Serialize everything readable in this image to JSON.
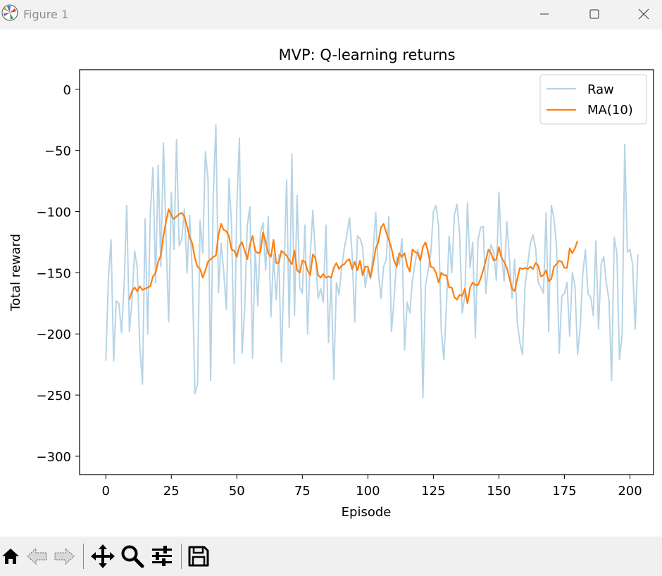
{
  "window": {
    "title": "Figure 1",
    "icons": [
      "matplotlib-logo-icon",
      "minimize-icon",
      "maximize-icon",
      "close-icon"
    ]
  },
  "toolbar": {
    "buttons": [
      "home-icon",
      "back-arrow-icon",
      "forward-arrow-icon",
      "pan-move-icon",
      "zoom-magnifier-icon",
      "configure-subplots-icon",
      "save-floppy-icon"
    ]
  },
  "colors": {
    "raw": "#b7d4e6",
    "ma": "#ff7f0e",
    "axis": "#000000"
  },
  "chart_data": {
    "type": "line",
    "title": "MVP: Q-learning returns",
    "xlabel": "Episode",
    "ylabel": "Total reward",
    "xlim": [
      -10,
      209
    ],
    "ylim": [
      -315,
      16
    ],
    "xticks": [
      0,
      25,
      50,
      75,
      100,
      125,
      150,
      175,
      200
    ],
    "yticks": [
      0,
      -50,
      -100,
      -150,
      -200,
      -250,
      -300
    ],
    "xtick_labels": [
      "0",
      "25",
      "50",
      "75",
      "100",
      "125",
      "150",
      "175",
      "200"
    ],
    "ytick_labels": [
      "0",
      "−50",
      "−100",
      "−150",
      "−200",
      "−250",
      "−300"
    ],
    "grid": false,
    "legend_position": "upper right",
    "series": [
      {
        "name": "Raw",
        "x_start": 0,
        "values": [
          -222,
          -155,
          -123,
          -222,
          -173,
          -175,
          -199,
          -160,
          -95,
          -198,
          -173,
          -132,
          -146,
          -211,
          -241,
          -106,
          -200,
          -101,
          -64,
          -158,
          -62,
          -145,
          -44,
          -122,
          -190,
          -84,
          -131,
          -41,
          -128,
          -122,
          -98,
          -150,
          -103,
          -149,
          -249,
          -241,
          -107,
          -134,
          -51,
          -73,
          -238,
          -88,
          -29,
          -166,
          -126,
          -149,
          -180,
          -73,
          -112,
          -224,
          -94,
          -40,
          -216,
          -180,
          -111,
          -96,
          -220,
          -129,
          -177,
          -118,
          -109,
          -148,
          -104,
          -186,
          -135,
          -172,
          -135,
          -223,
          -148,
          -74,
          -195,
          -53,
          -185,
          -87,
          -162,
          -167,
          -111,
          -200,
          -136,
          -99,
          -136,
          -171,
          -163,
          -174,
          -111,
          -207,
          -153,
          -237,
          -158,
          -168,
          -146,
          -130,
          -119,
          -105,
          -135,
          -190,
          -120,
          -122,
          -129,
          -162,
          -147,
          -155,
          -133,
          -101,
          -149,
          -171,
          -145,
          -139,
          -104,
          -198,
          -172,
          -137,
          -143,
          -122,
          -213,
          -174,
          -183,
          -156,
          -142,
          -131,
          -138,
          -252,
          -160,
          -148,
          -134,
          -100,
          -95,
          -112,
          -197,
          -221,
          -176,
          -120,
          -150,
          -103,
          -94,
          -118,
          -183,
          -169,
          -93,
          -146,
          -125,
          -203,
          -124,
          -113,
          -112,
          -167,
          -141,
          -127,
          -133,
          -156,
          -84,
          -134,
          -157,
          -108,
          -138,
          -171,
          -139,
          -190,
          -207,
          -217,
          -160,
          -143,
          -126,
          -119,
          -130,
          -158,
          -162,
          -167,
          -101,
          -198,
          -95,
          -105,
          -129,
          -216,
          -169,
          -167,
          -158,
          -202,
          -150,
          -160,
          -217,
          -195,
          -151,
          -131,
          -167,
          -170,
          -185,
          -124,
          -196,
          -143,
          -137,
          -159,
          -172,
          -238,
          -121,
          -134,
          -221,
          -201,
          -45,
          -133,
          -131,
          -143,
          -196,
          -135
        ]
      },
      {
        "name": "MA(10)",
        "x_start": 9,
        "values": [
          -172,
          -165,
          -162,
          -165,
          -161,
          -164,
          -163,
          -162,
          -161,
          -153,
          -150,
          -141,
          -136,
          -120,
          -108,
          -98,
          -103,
          -106,
          -104,
          -102,
          -101,
          -104,
          -112,
          -121,
          -126,
          -138,
          -145,
          -147,
          -154,
          -148,
          -141,
          -139,
          -137,
          -136,
          -119,
          -110,
          -115,
          -116,
          -120,
          -131,
          -132,
          -137,
          -128,
          -125,
          -132,
          -139,
          -127,
          -120,
          -132,
          -134,
          -133,
          -117,
          -125,
          -134,
          -137,
          -123,
          -142,
          -142,
          -132,
          -134,
          -136,
          -140,
          -143,
          -132,
          -148,
          -150,
          -140,
          -141,
          -148,
          -152,
          -135,
          -138,
          -152,
          -154,
          -151,
          -154,
          -153,
          -154,
          -146,
          -142,
          -147,
          -144,
          -143,
          -140,
          -139,
          -147,
          -141,
          -148,
          -140,
          -152,
          -145,
          -145,
          -154,
          -143,
          -130,
          -125,
          -113,
          -110,
          -117,
          -123,
          -130,
          -140,
          -145,
          -134,
          -137,
          -134,
          -144,
          -149,
          -131,
          -133,
          -134,
          -140,
          -129,
          -125,
          -133,
          -145,
          -146,
          -150,
          -158,
          -150,
          -152,
          -152,
          -162,
          -162,
          -170,
          -172,
          -168,
          -169,
          -163,
          -175,
          -162,
          -158,
          -160,
          -160,
          -155,
          -148,
          -140,
          -131,
          -134,
          -140,
          -139,
          -129,
          -138,
          -141,
          -146,
          -154,
          -163,
          -165,
          -155,
          -146,
          -147,
          -146,
          -147,
          -145,
          -147,
          -142,
          -144,
          -153,
          -152,
          -148,
          -157,
          -155,
          -145,
          -143,
          -140,
          -141,
          -146,
          -146,
          -130,
          -134,
          -130,
          -124
        ]
      }
    ]
  }
}
